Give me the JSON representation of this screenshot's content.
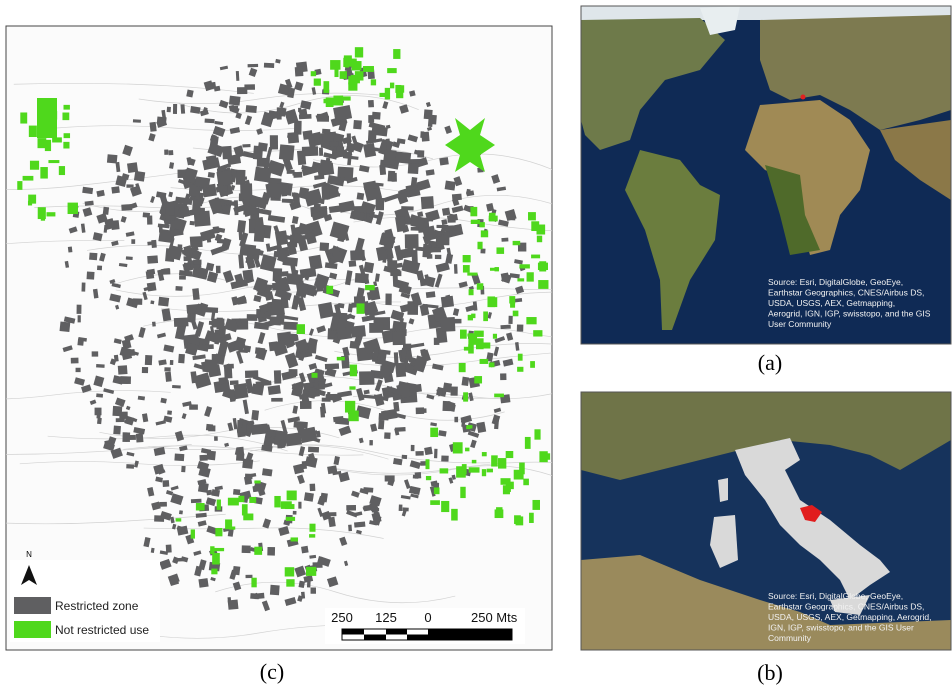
{
  "map_c": {
    "caption": "(c)",
    "north": "N",
    "legend": [
      {
        "label": "Restricted zone",
        "color": "#5f5f61"
      },
      {
        "label": "Not restricted use",
        "color": "#4fd81c"
      }
    ],
    "scale_labels": [
      "250",
      "125",
      "0",
      "250 Mts"
    ]
  },
  "map_a": {
    "caption": "(a)",
    "source_lines": [
      "Source: Esri, DigitalGlobe, GeoEye,",
      "Earthstar Geographics, CNES/Airbus DS,",
      "USDA, USGS, AEX, Getmapping,",
      "Aerogrid, IGN, IGP, swisstopo, and the GIS",
      "User Community"
    ]
  },
  "map_b": {
    "caption": "(b)",
    "source_lines": [
      "Source: Esri, DigitalGlobe, GeoEye,",
      "Earthstar Geographics, CNES/Airbus DS,",
      "USDA, USGS, AEX, Getmapping, Aerogrid,",
      "IGN, IGP, swisstopo, and the GIS User",
      "Community"
    ]
  }
}
